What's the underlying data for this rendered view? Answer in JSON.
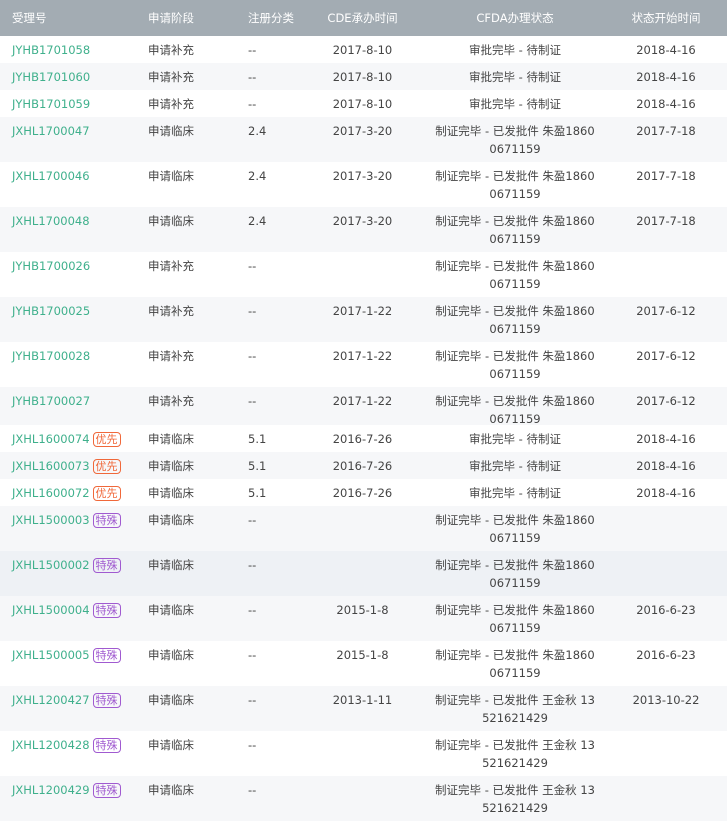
{
  "headers": [
    "受理号",
    "申请阶段",
    "注册分类",
    "CDE承办时间",
    "CFDA办理状态",
    "状态开始时间"
  ],
  "badge_colors": {
    "优先": "#f0683a",
    "特殊": "#a05ad0"
  },
  "link_color": "#3fb08c",
  "rows": [
    {
      "id": "JYHB1701058",
      "badge": "",
      "stage": "申请补充",
      "cls": "--",
      "cde": "2017-8-10",
      "status": "审批完毕 - 待制证",
      "start": "2018-4-16"
    },
    {
      "id": "JYHB1701060",
      "badge": "",
      "stage": "申请补充",
      "cls": "--",
      "cde": "2017-8-10",
      "status": "审批完毕 - 待制证",
      "start": "2018-4-16"
    },
    {
      "id": "JYHB1701059",
      "badge": "",
      "stage": "申请补充",
      "cls": "--",
      "cde": "2017-8-10",
      "status": "审批完毕 - 待制证",
      "start": "2018-4-16"
    },
    {
      "id": "JXHL1700047",
      "badge": "",
      "stage": "申请临床",
      "cls": "2.4",
      "cde": "2017-3-20",
      "status": "制证完毕 - 已发批件 朱盈18600671159",
      "start": "2017-7-18"
    },
    {
      "id": "JXHL1700046",
      "badge": "",
      "stage": "申请临床",
      "cls": "2.4",
      "cde": "2017-3-20",
      "status": "制证完毕 - 已发批件 朱盈18600671159",
      "start": "2017-7-18"
    },
    {
      "id": "JXHL1700048",
      "badge": "",
      "stage": "申请临床",
      "cls": "2.4",
      "cde": "2017-3-20",
      "status": "制证完毕 - 已发批件 朱盈18600671159",
      "start": "2017-7-18"
    },
    {
      "id": "JYHB1700026",
      "badge": "",
      "stage": "申请补充",
      "cls": "--",
      "cde": "",
      "status": "制证完毕 - 已发批件 朱盈18600671159",
      "start": ""
    },
    {
      "id": "JYHB1700025",
      "badge": "",
      "stage": "申请补充",
      "cls": "--",
      "cde": "2017-1-22",
      "status": "制证完毕 - 已发批件 朱盈18600671159",
      "start": "2017-6-12"
    },
    {
      "id": "JYHB1700028",
      "badge": "",
      "stage": "申请补充",
      "cls": "--",
      "cde": "2017-1-22",
      "status": "制证完毕 - 已发批件 朱盈18600671159",
      "start": "2017-6-12"
    },
    {
      "id": "JYHB1700027",
      "badge": "",
      "stage": "申请补充",
      "cls": "--",
      "cde": "2017-1-22",
      "status": "制证完毕 - 已发批件 朱盈18600671159",
      "start": "2017-6-12"
    },
    {
      "id": "JXHL1600074",
      "badge": "优先",
      "stage": "申请临床",
      "cls": "5.1",
      "cde": "2016-7-26",
      "status": "审批完毕 - 待制证",
      "start": "2018-4-16"
    },
    {
      "id": "JXHL1600073",
      "badge": "优先",
      "stage": "申请临床",
      "cls": "5.1",
      "cde": "2016-7-26",
      "status": "审批完毕 - 待制证",
      "start": "2018-4-16"
    },
    {
      "id": "JXHL1600072",
      "badge": "优先",
      "stage": "申请临床",
      "cls": "5.1",
      "cde": "2016-7-26",
      "status": "审批完毕 - 待制证",
      "start": "2018-4-16"
    },
    {
      "id": "JXHL1500003",
      "badge": "特殊",
      "stage": "申请临床",
      "cls": "--",
      "cde": "",
      "status": "制证完毕 - 已发批件 朱盈18600671159",
      "start": ""
    },
    {
      "id": "JXHL1500002",
      "badge": "特殊",
      "stage": "申请临床",
      "cls": "--",
      "cde": "",
      "status": "制证完毕 - 已发批件 朱盈18600671159",
      "start": ""
    },
    {
      "id": "JXHL1500004",
      "badge": "特殊",
      "stage": "申请临床",
      "cls": "--",
      "cde": "2015-1-8",
      "status": "制证完毕 - 已发批件 朱盈18600671159",
      "start": "2016-6-23"
    },
    {
      "id": "JXHL1500005",
      "badge": "特殊",
      "stage": "申请临床",
      "cls": "--",
      "cde": "2015-1-8",
      "status": "制证完毕 - 已发批件 朱盈18600671159",
      "start": "2016-6-23"
    },
    {
      "id": "JXHL1200427",
      "badge": "特殊",
      "stage": "申请临床",
      "cls": "--",
      "cde": "2013-1-11",
      "status": "制证完毕 - 已发批件 王金秋 13521621429",
      "start": "2013-10-22"
    },
    {
      "id": "JXHL1200428",
      "badge": "特殊",
      "stage": "申请临床",
      "cls": "--",
      "cde": "",
      "status": "制证完毕 - 已发批件 王金秋 13521621429",
      "start": ""
    },
    {
      "id": "JXHL1200429",
      "badge": "特殊",
      "stage": "申请临床",
      "cls": "--",
      "cde": "",
      "status": "制证完毕 - 已发批件 王金秋 13521621429",
      "start": ""
    }
  ]
}
